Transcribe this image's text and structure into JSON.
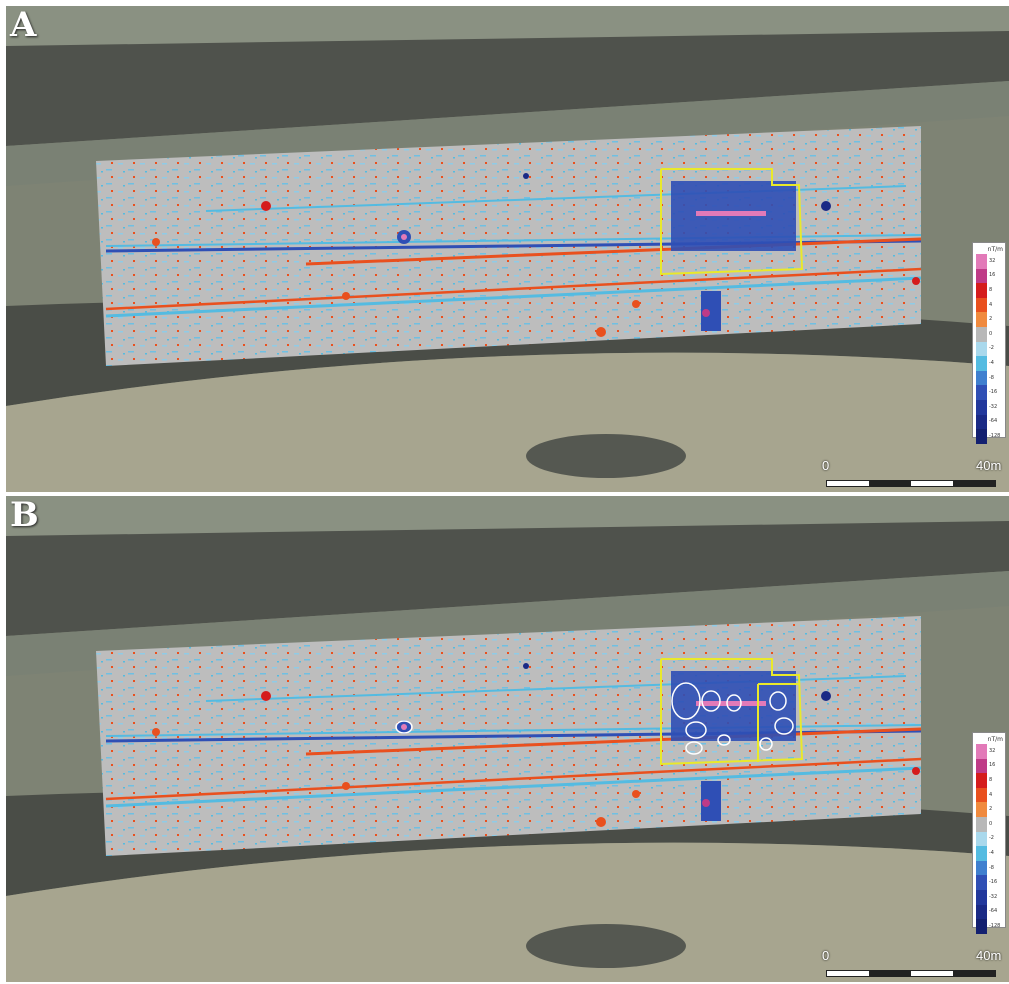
{
  "panels": [
    {
      "id": "a",
      "label": "A",
      "scale": {
        "start_label": "0",
        "end_label": "40m"
      },
      "legend": {
        "unit": "nT/m"
      },
      "annotations": [
        "yellow-survey-outline"
      ]
    },
    {
      "id": "b",
      "label": "B",
      "scale": {
        "start_label": "0",
        "end_label": "40m"
      },
      "legend": {
        "unit": "nT/m"
      },
      "annotations": [
        "yellow-survey-outline",
        "white-feature-outlines"
      ]
    }
  ],
  "legend_steps": [
    {
      "label": "32",
      "color": "#e27ab8"
    },
    {
      "label": "16",
      "color": "#bf3b87"
    },
    {
      "label": "8",
      "color": "#d51c1c"
    },
    {
      "label": "4",
      "color": "#e9501e"
    },
    {
      "label": "2",
      "color": "#f08a3e"
    },
    {
      "label": "0",
      "color": "#b8b8b8"
    },
    {
      "label": "-2",
      "color": "#a9d8ec"
    },
    {
      "label": "-4",
      "color": "#54bbe1"
    },
    {
      "label": "-8",
      "color": "#3f7fcf"
    },
    {
      "label": "-16",
      "color": "#2f4fb5"
    },
    {
      "label": "-32",
      "color": "#22389c"
    },
    {
      "label": "-64",
      "color": "#1a2a86"
    },
    {
      "label": "-128",
      "color": "#132070"
    }
  ],
  "colors": {
    "survey_outline": "#e9e92a",
    "feature_outline": "#ffffff",
    "road": "#4f524c",
    "field_light": "#a8a58c",
    "field_dark": "#73786a",
    "survey_base": "#bdbdbd"
  }
}
